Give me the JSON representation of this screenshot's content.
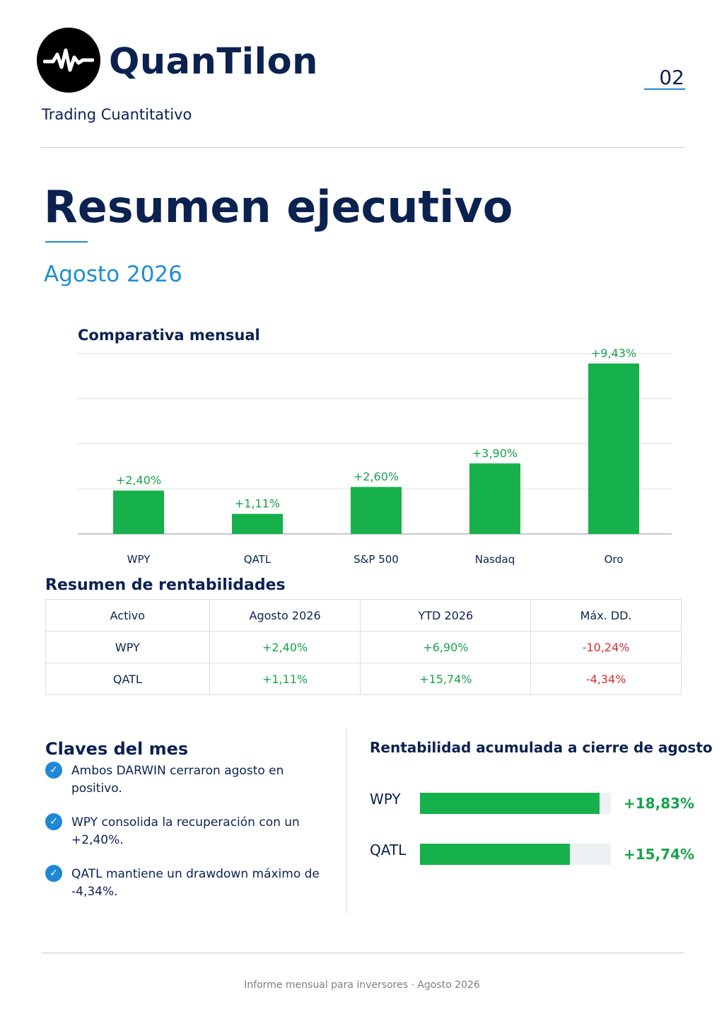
{
  "header": {
    "brand_name": "QuanTilon",
    "tagline": "Trading Cuantitativo",
    "page_number": "02"
  },
  "title": "Resumen ejecutivo",
  "subtitle": "Agosto 2026",
  "chart_data": {
    "type": "bar",
    "title": "Comparativa mensual",
    "categories": [
      "WPY",
      "QATL",
      "S&P 500",
      "Nasdaq",
      "Oro"
    ],
    "values": [
      2.4,
      1.11,
      2.6,
      3.9,
      9.43
    ],
    "data_labels": [
      "+2,40%",
      "+1,11%",
      "+2,60%",
      "+3,90%",
      "+9,43%"
    ],
    "ylim": [
      0,
      10
    ],
    "grid": true,
    "bar_color": "#16b14a",
    "label_color": "#16a34a"
  },
  "returns_table": {
    "title": "Resumen de rentabilidades",
    "headers": [
      "Activo",
      "Agosto 2026",
      "YTD 2026",
      "Máx. DD."
    ],
    "rows": [
      [
        "WPY",
        "+2,40%",
        "+6,90%",
        "-10,24%"
      ],
      [
        "QATL",
        "+1,11%",
        "+15,74%",
        "-4,34%"
      ]
    ]
  },
  "key_points": {
    "title": "Claves del mes",
    "items": [
      "Ambos DARWIN cerraron agosto en positivo.",
      "WPY consolida la recuperación con un +2,40%.",
      "QATL mantiene un drawdown máximo de -4,34%."
    ]
  },
  "accumulated": {
    "title": "Rentabilidad acumulada a cierre de agosto",
    "items": [
      {
        "label": "WPY",
        "value": "+18,83%",
        "fill_fraction": 0.94
      },
      {
        "label": "QATL",
        "value": "+15,74%",
        "fill_fraction": 0.786
      }
    ]
  },
  "footer": "Informe mensual para inversores · Agosto 2026",
  "colors": {
    "navy": "#0b2250",
    "accent_blue": "#1e88d6",
    "positive": "#16a34a",
    "negative": "#d32f2f"
  }
}
